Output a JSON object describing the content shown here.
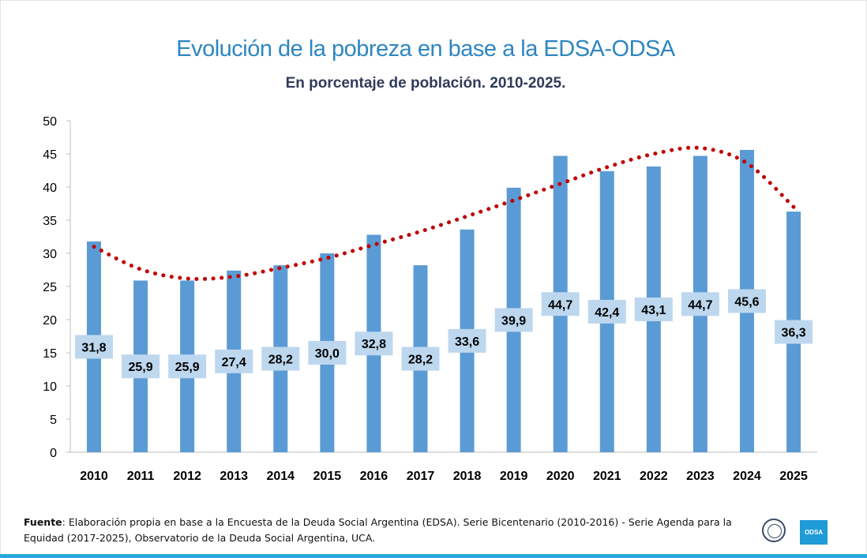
{
  "chart_data": {
    "type": "bar",
    "title": "Evolución de la pobreza en base a la EDSA-ODSA",
    "subtitle": "En porcentaje de población. 2010-2025.",
    "categories": [
      "2010",
      "2011",
      "2012",
      "2013",
      "2014",
      "2015",
      "2016",
      "2017",
      "2018",
      "2019",
      "2020",
      "2021",
      "2022",
      "2023",
      "2024",
      "2025"
    ],
    "values": [
      31.8,
      25.9,
      25.9,
      27.4,
      28.2,
      30.0,
      32.8,
      28.2,
      33.6,
      39.9,
      44.7,
      42.4,
      43.1,
      44.7,
      45.6,
      36.3
    ],
    "data_labels": [
      "31,8",
      "25,9",
      "25,9",
      "27,4",
      "28,2",
      "30,0",
      "32,8",
      "28,2",
      "33,6",
      "39,9",
      "44,7",
      "42,4",
      "43,1",
      "44,7",
      "45,6",
      "36,3"
    ],
    "trendline": {
      "style": "dotted",
      "color": "#c00000",
      "values": [
        31.0,
        27.6,
        26.2,
        26.5,
        27.8,
        29.3,
        31.3,
        33.3,
        35.6,
        38.0,
        40.5,
        43.0,
        45.0,
        45.9,
        43.6,
        37.0
      ]
    },
    "ylim": [
      0,
      50
    ],
    "yticks": [
      "0",
      "5",
      "10",
      "15",
      "20",
      "25",
      "30",
      "35",
      "40",
      "45",
      "50"
    ],
    "bar_color": "#5b9bd5",
    "label_box_color": "#bdd7ee",
    "grid": false,
    "legend": "none"
  },
  "footer": {
    "source_label": "Fuente",
    "source_text": ": Elaboración propia en base a la Encuesta de la Deuda Social Argentina (EDSA). Serie Bicentenario (2010-2016) - Serie Agenda para la Equidad (2017-2025), Observatorio de la Deuda Social Argentina, UCA."
  },
  "logos": {
    "odsa": "ODSA",
    "uca": "UCA seal"
  }
}
